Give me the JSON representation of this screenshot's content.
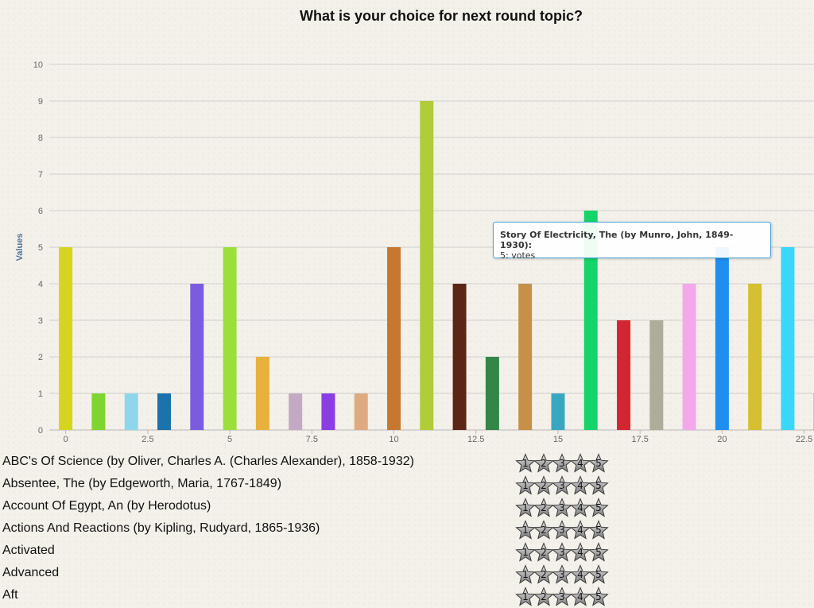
{
  "chart_data": {
    "type": "bar",
    "title": "What is your choice for next round topic?",
    "ylabel": "Values",
    "xlabel": "",
    "ylim": [
      0,
      10
    ],
    "xlim": [
      -0.5,
      22.8
    ],
    "grid": true,
    "x_ticks": [
      "0",
      "2.5",
      "5",
      "7.5",
      "10",
      "12.5",
      "15",
      "17.5",
      "20",
      "22.5"
    ],
    "y_ticks": [
      "0",
      "1",
      "2",
      "3",
      "4",
      "5",
      "6",
      "7",
      "8",
      "9",
      "10"
    ],
    "values": [
      5,
      1,
      1,
      1,
      4,
      5,
      2,
      1,
      1,
      1,
      5,
      9,
      4,
      2,
      4,
      1,
      6,
      3,
      3,
      4,
      5,
      4,
      5,
      1
    ],
    "colors": [
      "#d5d520",
      "#7fd42f",
      "#8dd6ec",
      "#1c72ab",
      "#7b5ce0",
      "#9be03a",
      "#e8b03c",
      "#c4a9c4",
      "#8a3ee3",
      "#deab80",
      "#c67730",
      "#b0cc38",
      "#5c2617",
      "#338548",
      "#c69049",
      "#3aa7c1",
      "#14d46a",
      "#d42630",
      "#afac9a",
      "#f4a8ec",
      "#1e8ff0",
      "#d4c030",
      "#39d7fb",
      "#5a2a7c"
    ]
  },
  "tooltip": {
    "title": "Story Of Electricity, The (by Munro, John, 1849-1930):",
    "value": "5: votes"
  },
  "topics": [
    "ABC's Of Science (by Oliver, Charles A. (Charles Alexander), 1858-1932)",
    "Absentee, The (by Edgeworth, Maria, 1767-1849)",
    "Account Of Egypt, An (by Herodotus)",
    "Actions And Reactions (by Kipling, Rudyard, 1865-1936)",
    "Activated",
    "Advanced",
    "Aft"
  ],
  "star_labels": [
    "1",
    "2",
    "3",
    "4",
    "5"
  ]
}
